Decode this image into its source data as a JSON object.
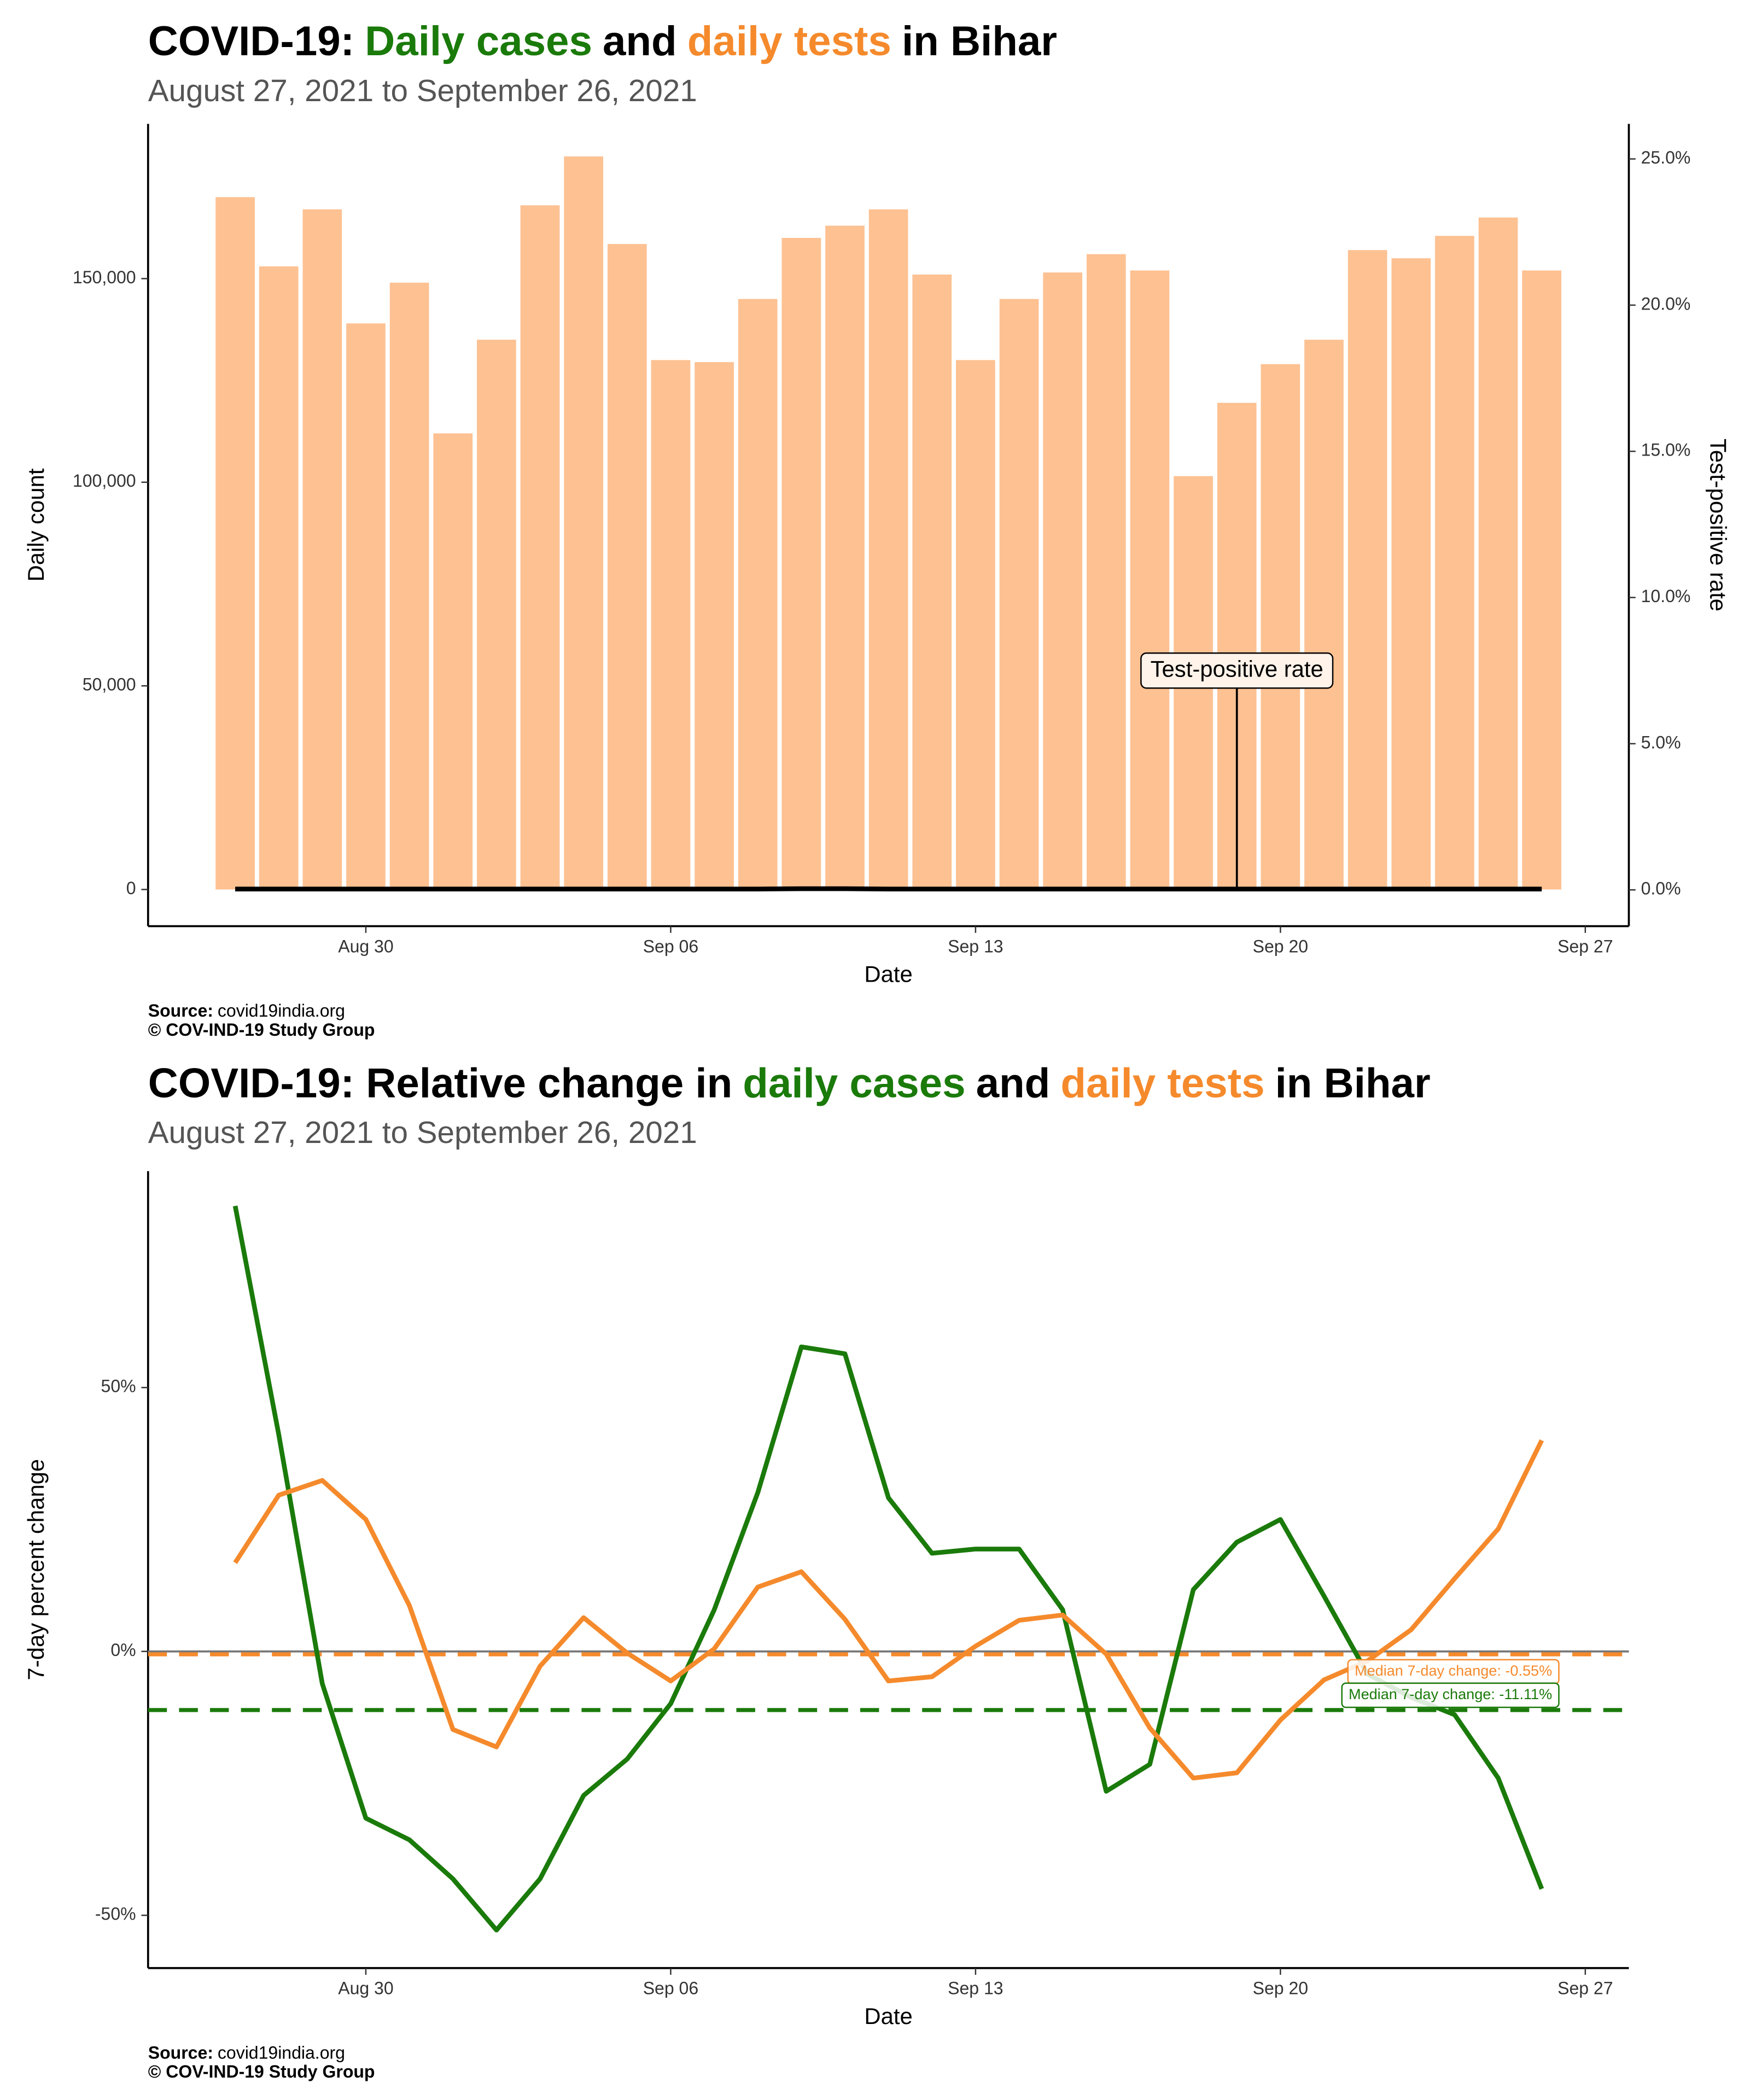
{
  "chart_data": [
    {
      "type": "bar",
      "title_parts": [
        {
          "text": "COVID-19:",
          "color": "#000000"
        },
        {
          "text": "Daily cases",
          "color": "#1a7a0a"
        },
        {
          "text": "and",
          "color": "#000000"
        },
        {
          "text": "daily tests",
          "color": "#f58a2c"
        },
        {
          "text": "in Bihar",
          "color": "#000000"
        }
      ],
      "subtitle": "August 27, 2021 to September 26, 2021",
      "x_label": "Date",
      "y_label": "Daily count",
      "y2_label": "Test-positive rate",
      "source_label": "Source:",
      "source": "covid19india.org",
      "copyright": "© COV-IND-19 Study Group",
      "x": [
        "2021-08-27",
        "2021-08-28",
        "2021-08-29",
        "2021-08-30",
        "2021-08-31",
        "2021-09-01",
        "2021-09-02",
        "2021-09-03",
        "2021-09-04",
        "2021-09-05",
        "2021-09-06",
        "2021-09-07",
        "2021-09-08",
        "2021-09-09",
        "2021-09-10",
        "2021-09-11",
        "2021-09-12",
        "2021-09-13",
        "2021-09-14",
        "2021-09-15",
        "2021-09-16",
        "2021-09-17",
        "2021-09-18",
        "2021-09-19",
        "2021-09-20",
        "2021-09-21",
        "2021-09-22",
        "2021-09-23",
        "2021-09-24",
        "2021-09-25",
        "2021-09-26"
      ],
      "series": [
        {
          "name": "daily tests",
          "color": "#fdc192",
          "values": [
            170000,
            153000,
            167000,
            139000,
            149000,
            112000,
            135000,
            168000,
            180000,
            158500,
            130000,
            129500,
            145000,
            160000,
            163000,
            167000,
            151000,
            130000,
            145000,
            151500,
            156000,
            152000,
            101500,
            119500,
            129000,
            135000,
            157000,
            155000,
            160500,
            165000,
            152000
          ]
        },
        {
          "name": "Test-positive rate",
          "color": "#000000",
          "axis": "y2",
          "values": [
            0.03,
            0.03,
            0.03,
            0.03,
            0.03,
            0.03,
            0.03,
            0.03,
            0.03,
            0.03,
            0.03,
            0.03,
            0.03,
            0.04,
            0.04,
            0.03,
            0.03,
            0.03,
            0.03,
            0.03,
            0.03,
            0.03,
            0.03,
            0.03,
            0.03,
            0.03,
            0.03,
            0.03,
            0.03,
            0.03,
            0.03
          ]
        }
      ],
      "annotation": {
        "text": "Test-positive rate",
        "x": "2021-09-19",
        "y2": 7.5
      },
      "xlim": [
        "2021-08-25",
        "2021-09-28"
      ],
      "xticks": [
        {
          "value": "2021-08-30",
          "label": "Aug 30"
        },
        {
          "value": "2021-09-06",
          "label": "Sep 06"
        },
        {
          "value": "2021-09-13",
          "label": "Sep 13"
        },
        {
          "value": "2021-09-20",
          "label": "Sep 20"
        },
        {
          "value": "2021-09-27",
          "label": "Sep 27"
        }
      ],
      "ylim": [
        -9000,
        188000
      ],
      "yticks": [
        0,
        {
          "value": 50000,
          "label": "50,000"
        },
        {
          "value": 100000,
          "label": "100,000"
        },
        {
          "value": 150000,
          "label": "150,000"
        }
      ],
      "y2lim": [
        -1.24,
        26.2
      ],
      "y2ticks": [
        {
          "value": 0,
          "label": "0.0%"
        },
        {
          "value": 5,
          "label": "5.0%"
        },
        {
          "value": 10,
          "label": "10.0%"
        },
        {
          "value": 15,
          "label": "15.0%"
        },
        {
          "value": 20,
          "label": "20.0%"
        },
        {
          "value": 25,
          "label": "25.0%"
        }
      ]
    },
    {
      "type": "line",
      "title_parts": [
        {
          "text": "COVID-19: Relative change in",
          "color": "#000000"
        },
        {
          "text": "daily cases",
          "color": "#1a7a0a"
        },
        {
          "text": "and",
          "color": "#000000"
        },
        {
          "text": "daily tests",
          "color": "#f58a2c"
        },
        {
          "text": "in Bihar",
          "color": "#000000"
        }
      ],
      "subtitle": "August 27, 2021 to September 26, 2021",
      "x_label": "Date",
      "y_label": "7-day percent change",
      "source_label": "Source:",
      "source": "covid19india.org",
      "copyright": "© COV-IND-19 Study Group",
      "x": [
        "2021-08-27",
        "2021-08-28",
        "2021-08-29",
        "2021-08-30",
        "2021-08-31",
        "2021-09-01",
        "2021-09-02",
        "2021-09-03",
        "2021-09-04",
        "2021-09-05",
        "2021-09-06",
        "2021-09-07",
        "2021-09-08",
        "2021-09-09",
        "2021-09-10",
        "2021-09-11",
        "2021-09-12",
        "2021-09-13",
        "2021-09-14",
        "2021-09-15",
        "2021-09-16",
        "2021-09-17",
        "2021-09-18",
        "2021-09-19",
        "2021-09-20",
        "2021-09-21",
        "2021-09-22",
        "2021-09-23",
        "2021-09-24",
        "2021-09-25",
        "2021-09-26"
      ],
      "series": [
        {
          "name": "daily cases",
          "color": "#1a7a0a",
          "values": [
            84.4,
            41.1,
            -6.1,
            -31.6,
            -35.7,
            -43.1,
            -52.8,
            -43.1,
            -27.3,
            -20.4,
            -9.9,
            7.9,
            30.1,
            57.7,
            56.4,
            29.1,
            18.6,
            19.4,
            19.4,
            7.9,
            -26.5,
            -21.4,
            11.7,
            20.7,
            25.0,
            10.5,
            -4.3,
            -8.7,
            -12.0,
            -24.0,
            -45.0
          ]
        },
        {
          "name": "daily tests",
          "color": "#f58a2c",
          "values": [
            16.8,
            29.6,
            32.4,
            25.0,
            8.7,
            -14.8,
            -18.1,
            -2.8,
            6.4,
            -0.3,
            -5.6,
            0.5,
            12.2,
            15.1,
            6.1,
            -5.6,
            -4.8,
            1.0,
            5.9,
            6.9,
            -0.5,
            -14.5,
            -24.0,
            -23.0,
            -13.0,
            -5.4,
            -1.8,
            4.1,
            13.8,
            23.2,
            40.0
          ]
        }
      ],
      "hlines": [
        {
          "value": -0.55,
          "label": "Median 7-day change: -0.55%",
          "color": "#f58a2c"
        },
        {
          "value": -11.11,
          "label": "Median 7-day change: -11.11%",
          "color": "#1a7a0a"
        }
      ],
      "xlim": [
        "2021-08-25",
        "2021-09-28"
      ],
      "xticks": [
        {
          "value": "2021-08-30",
          "label": "Aug 30"
        },
        {
          "value": "2021-09-06",
          "label": "Sep 06"
        },
        {
          "value": "2021-09-13",
          "label": "Sep 13"
        },
        {
          "value": "2021-09-20",
          "label": "Sep 20"
        },
        {
          "value": "2021-09-27",
          "label": "Sep 27"
        }
      ],
      "ylim": [
        -60,
        91
      ],
      "yticks": [
        {
          "value": -50,
          "label": "-50%"
        },
        {
          "value": 0,
          "label": "0%"
        },
        {
          "value": 50,
          "label": "50%"
        }
      ]
    }
  ]
}
